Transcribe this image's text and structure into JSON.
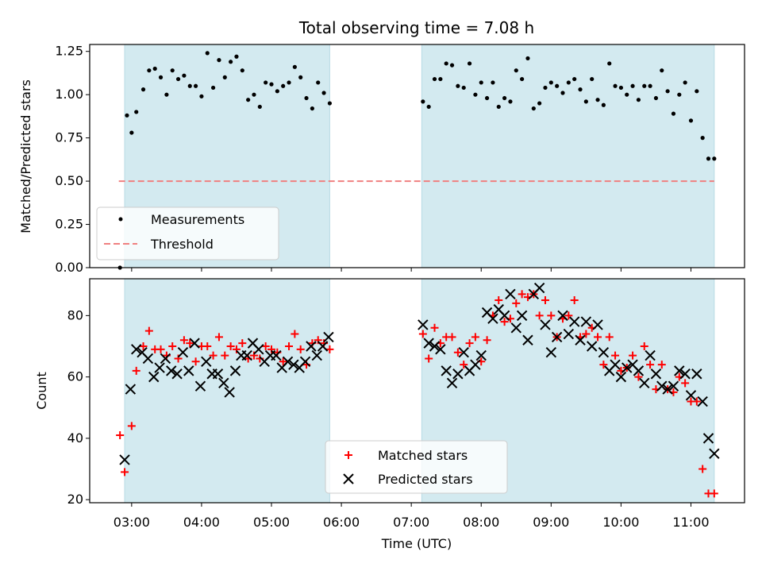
{
  "chart_data": [
    {
      "type": "scatter",
      "title": "Total observing time = 7.08 h",
      "xlabel": "",
      "ylabel": "Matched/Predicted stars",
      "ylim": [
        0,
        1.29
      ],
      "yticks": [
        "0.00",
        "0.25",
        "0.50",
        "0.75",
        "1.00",
        "1.25"
      ],
      "ytick_values": [
        0,
        0.25,
        0.5,
        0.75,
        1.0,
        1.25
      ],
      "shaded_intervals": [
        [
          "02:54",
          "05:50"
        ],
        [
          "07:09",
          "11:20"
        ]
      ],
      "shade_color": "#d3eaf0",
      "threshold": {
        "name": "Threshold",
        "value": 0.5,
        "x_range": [
          "02:49",
          "11:20"
        ],
        "color": "#f08080"
      },
      "series": [
        {
          "name": "Measurements",
          "color": "#000000",
          "x": [
            "02:50",
            "02:56",
            "03:00",
            "03:04",
            "03:10",
            "03:15",
            "03:20",
            "03:25",
            "03:30",
            "03:35",
            "03:40",
            "03:45",
            "03:50",
            "03:55",
            "04:00",
            "04:05",
            "04:10",
            "04:15",
            "04:20",
            "04:25",
            "04:30",
            "04:35",
            "04:40",
            "04:45",
            "04:50",
            "04:55",
            "05:00",
            "05:05",
            "05:10",
            "05:15",
            "05:20",
            "05:25",
            "05:30",
            "05:35",
            "05:40",
            "05:45",
            "05:50",
            "07:10",
            "07:15",
            "07:20",
            "07:25",
            "07:30",
            "07:35",
            "07:40",
            "07:45",
            "07:50",
            "07:55",
            "08:00",
            "08:05",
            "08:10",
            "08:15",
            "08:20",
            "08:25",
            "08:30",
            "08:35",
            "08:40",
            "08:45",
            "08:50",
            "08:55",
            "09:00",
            "09:05",
            "09:10",
            "09:15",
            "09:20",
            "09:25",
            "09:30",
            "09:35",
            "09:40",
            "09:45",
            "09:50",
            "09:55",
            "10:00",
            "10:05",
            "10:10",
            "10:15",
            "10:20",
            "10:25",
            "10:30",
            "10:35",
            "10:40",
            "10:45",
            "10:50",
            "10:55",
            "11:00",
            "11:05",
            "11:10",
            "11:15",
            "11:20"
          ],
          "values": [
            0.0,
            0.88,
            0.78,
            0.9,
            1.03,
            1.14,
            1.15,
            1.1,
            1.0,
            1.14,
            1.09,
            1.11,
            1.05,
            1.05,
            0.99,
            1.24,
            1.04,
            1.2,
            1.1,
            1.19,
            1.22,
            1.14,
            0.97,
            1.0,
            0.93,
            1.07,
            1.06,
            1.02,
            1.05,
            1.07,
            1.16,
            1.1,
            0.98,
            0.92,
            1.07,
            1.01,
            0.95,
            0.96,
            0.93,
            1.09,
            1.09,
            1.18,
            1.17,
            1.05,
            1.04,
            1.18,
            1.0,
            1.07,
            0.98,
            1.07,
            0.93,
            0.98,
            0.96,
            1.14,
            1.09,
            1.21,
            0.92,
            0.95,
            1.04,
            1.07,
            1.05,
            1.01,
            1.07,
            1.09,
            1.03,
            0.96,
            1.09,
            0.97,
            0.94,
            1.18,
            1.05,
            1.04,
            1.0,
            1.05,
            0.97,
            1.05,
            1.05,
            0.98,
            1.14,
            1.02,
            0.89,
            1.0,
            1.07,
            0.85,
            1.02,
            0.75,
            0.63,
            0.63
          ]
        }
      ],
      "legend": {
        "placement": "lower-left",
        "entries": [
          {
            "label": "Measurements",
            "marker": "dot"
          },
          {
            "label": "Threshold",
            "marker": "dashed-line"
          }
        ]
      }
    },
    {
      "type": "scatter",
      "title": "",
      "xlabel": "Time (UTC)",
      "ylabel": "Count",
      "ylim": [
        19,
        92
      ],
      "yticks": [
        "20",
        "40",
        "60",
        "80"
      ],
      "ytick_values": [
        20,
        40,
        60,
        80
      ],
      "x_range": [
        "02:24",
        "11:46"
      ],
      "xticks": [
        "03:00",
        "04:00",
        "05:00",
        "06:00",
        "07:00",
        "08:00",
        "09:00",
        "10:00",
        "11:00"
      ],
      "series": [
        {
          "name": "Matched stars",
          "marker": "plus",
          "color": "#ff0000",
          "x": [
            "02:50",
            "02:54",
            "03:00",
            "03:04",
            "03:10",
            "03:15",
            "03:20",
            "03:25",
            "03:30",
            "03:35",
            "03:40",
            "03:45",
            "03:50",
            "03:55",
            "04:00",
            "04:05",
            "04:10",
            "04:15",
            "04:20",
            "04:25",
            "04:30",
            "04:35",
            "04:40",
            "04:45",
            "04:50",
            "04:55",
            "05:00",
            "05:05",
            "05:10",
            "05:15",
            "05:20",
            "05:25",
            "05:30",
            "05:35",
            "05:40",
            "05:45",
            "05:50",
            "07:10",
            "07:15",
            "07:20",
            "07:25",
            "07:30",
            "07:35",
            "07:40",
            "07:45",
            "07:50",
            "07:55",
            "08:00",
            "08:05",
            "08:10",
            "08:15",
            "08:20",
            "08:25",
            "08:30",
            "08:35",
            "08:40",
            "08:45",
            "08:50",
            "08:55",
            "09:00",
            "09:05",
            "09:10",
            "09:15",
            "09:20",
            "09:25",
            "09:30",
            "09:35",
            "09:40",
            "09:45",
            "09:50",
            "09:55",
            "10:00",
            "10:05",
            "10:10",
            "10:15",
            "10:20",
            "10:25",
            "10:30",
            "10:35",
            "10:40",
            "10:45",
            "10:50",
            "10:55",
            "11:00",
            "11:05",
            "11:10",
            "11:15",
            "11:20"
          ],
          "values": [
            41,
            29,
            44,
            62,
            70,
            75,
            69,
            69,
            67,
            70,
            66,
            72,
            71,
            65,
            70,
            70,
            67,
            73,
            67,
            70,
            69,
            71,
            66,
            67,
            66,
            70,
            69,
            68,
            65,
            70,
            74,
            69,
            64,
            71,
            72,
            71,
            69,
            74,
            66,
            76,
            71,
            73,
            73,
            68,
            64,
            71,
            73,
            65,
            72,
            80,
            85,
            78,
            79,
            84,
            87,
            86,
            87,
            80,
            85,
            80,
            73,
            79,
            80,
            85,
            73,
            74,
            76,
            73,
            64,
            73,
            67,
            62,
            63,
            67,
            60,
            70,
            64,
            56,
            64,
            56,
            55,
            60,
            58,
            52,
            52,
            30,
            22,
            22
          ]
        },
        {
          "name": "Predicted stars",
          "marker": "x",
          "color": "#000000",
          "x": [
            "02:54",
            "02:59",
            "03:04",
            "03:09",
            "03:14",
            "03:19",
            "03:24",
            "03:29",
            "03:34",
            "03:39",
            "03:44",
            "03:49",
            "03:54",
            "03:59",
            "04:04",
            "04:09",
            "04:14",
            "04:19",
            "04:24",
            "04:29",
            "04:34",
            "04:39",
            "04:44",
            "04:49",
            "04:54",
            "04:59",
            "05:04",
            "05:09",
            "05:14",
            "05:19",
            "05:24",
            "05:29",
            "05:34",
            "05:39",
            "05:44",
            "05:49",
            "07:10",
            "07:15",
            "07:20",
            "07:25",
            "07:30",
            "07:35",
            "07:40",
            "07:45",
            "07:50",
            "07:55",
            "08:00",
            "08:05",
            "08:10",
            "08:15",
            "08:20",
            "08:25",
            "08:30",
            "08:35",
            "08:40",
            "08:45",
            "08:50",
            "08:55",
            "09:00",
            "09:05",
            "09:10",
            "09:15",
            "09:20",
            "09:25",
            "09:30",
            "09:35",
            "09:40",
            "09:45",
            "09:50",
            "09:55",
            "10:00",
            "10:05",
            "10:10",
            "10:15",
            "10:20",
            "10:25",
            "10:30",
            "10:35",
            "10:40",
            "10:45",
            "10:50",
            "10:55",
            "11:00",
            "11:05",
            "11:10",
            "11:15",
            "11:20"
          ],
          "values": [
            33,
            56,
            69,
            68,
            66,
            60,
            63,
            66,
            62,
            61,
            68,
            62,
            71,
            57,
            65,
            61,
            61,
            58,
            55,
            62,
            67,
            67,
            71,
            69,
            65,
            67,
            67,
            63,
            65,
            64,
            63,
            65,
            70,
            67,
            70,
            73,
            77,
            71,
            70,
            69,
            62,
            58,
            61,
            68,
            62,
            64,
            67,
            81,
            79,
            82,
            80,
            87,
            76,
            80,
            72,
            87,
            89,
            77,
            68,
            73,
            80,
            74,
            78,
            72,
            78,
            70,
            77,
            68,
            62,
            64,
            60,
            63,
            64,
            62,
            58,
            67,
            61,
            57,
            56,
            57,
            62,
            61,
            54,
            61,
            52,
            40,
            35
          ]
        }
      ],
      "legend": {
        "placement": "lower-center",
        "entries": [
          {
            "label": "Matched stars",
            "marker": "plus"
          },
          {
            "label": "Predicted stars",
            "marker": "x"
          }
        ]
      }
    }
  ]
}
